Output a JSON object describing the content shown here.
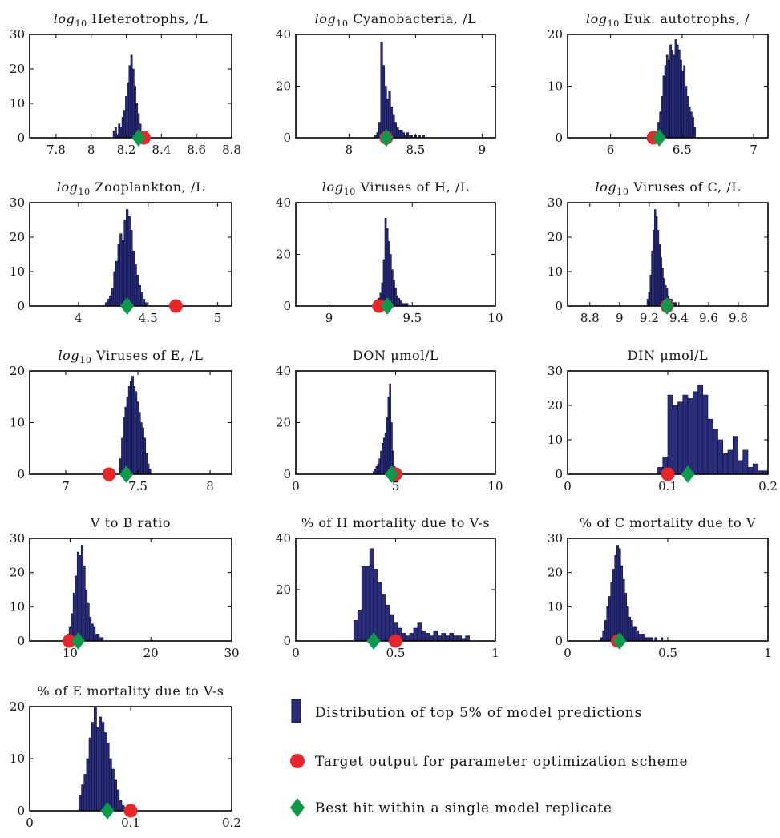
{
  "colors": {
    "bar": "#2a2e7a",
    "bar_edge": "#0b0d3a",
    "target": "#e8262a",
    "best": "#0a9a4a"
  },
  "legend": {
    "distribution_label": "Distribution of top 5% of model predictions",
    "target_label": "Target output for parameter optimization scheme",
    "best_label": "Best hit within a single model replicate"
  },
  "chart_data": [
    {
      "type": "bar",
      "title_prefix": "log",
      "title_sub": "10",
      "title": "Heterotrophs, /L",
      "xlim": [
        7.65,
        8.8
      ],
      "ylim": [
        0,
        30
      ],
      "xticks": [
        "7.8",
        "8",
        "8.2",
        "8.4",
        "8.6",
        "8.8"
      ],
      "yticks": [
        "0",
        "10",
        "20",
        "30"
      ],
      "bin_width": 0.01,
      "x": [
        8.13,
        8.14,
        8.15,
        8.16,
        8.17,
        8.18,
        8.19,
        8.2,
        8.21,
        8.22,
        8.23,
        8.24,
        8.25,
        8.26,
        8.27,
        8.28,
        8.29,
        8.3
      ],
      "values": [
        2,
        3,
        1,
        4,
        3,
        6,
        8,
        12,
        16,
        21,
        24,
        20,
        15,
        10,
        7,
        4,
        2,
        1
      ],
      "target": 8.3,
      "best": 8.27
    },
    {
      "type": "bar",
      "title_prefix": "log",
      "title_sub": "10",
      "title": "Cyanobacteria, /L",
      "xlim": [
        7.6,
        9.1
      ],
      "ylim": [
        0,
        40
      ],
      "xticks": [
        "8",
        "8.5",
        "9"
      ],
      "yticks": [
        "0",
        "20",
        "40"
      ],
      "bin_width": 0.015,
      "x": [
        8.2,
        8.215,
        8.23,
        8.245,
        8.26,
        8.275,
        8.29,
        8.305,
        8.32,
        8.335,
        8.35,
        8.365,
        8.38,
        8.395,
        8.41,
        8.425,
        8.44,
        8.455,
        8.47,
        8.485,
        8.5,
        8.515,
        8.53,
        8.545,
        8.56
      ],
      "values": [
        1,
        2,
        6,
        37,
        28,
        20,
        15,
        18,
        12,
        9,
        6,
        4,
        3,
        3,
        2,
        1,
        2,
        1,
        1,
        0,
        1,
        0,
        1,
        0,
        1
      ],
      "target": 8.28,
      "best": 8.28
    },
    {
      "type": "bar",
      "title_prefix": "log",
      "title_sub": "10",
      "title": "Euk. autotrophs, /",
      "xlim": [
        5.7,
        7.1
      ],
      "ylim": [
        0,
        20
      ],
      "xticks": [
        "6",
        "6.5",
        "7"
      ],
      "yticks": [
        "0",
        "10",
        "20"
      ],
      "bin_width": 0.012,
      "x": [
        6.336,
        6.348,
        6.36,
        6.372,
        6.384,
        6.396,
        6.408,
        6.42,
        6.432,
        6.444,
        6.456,
        6.468,
        6.48,
        6.492,
        6.504,
        6.516,
        6.528,
        6.54,
        6.552,
        6.564,
        6.576,
        6.588
      ],
      "values": [
        3,
        5,
        8,
        12,
        14,
        16,
        15,
        18,
        17,
        16,
        19,
        18,
        17,
        15,
        13,
        14,
        10,
        8,
        6,
        5,
        4,
        2
      ],
      "target": 6.3,
      "best": 6.34
    },
    {
      "type": "bar",
      "title_prefix": "log",
      "title_sub": "10",
      "title": "Zooplankton, /L",
      "xlim": [
        3.65,
        5.1
      ],
      "ylim": [
        0,
        30
      ],
      "xticks": [
        "4",
        "4.5",
        "5"
      ],
      "yticks": [
        "0",
        "10",
        "20",
        "30"
      ],
      "bin_width": 0.015,
      "x": [
        4.2,
        4.215,
        4.23,
        4.245,
        4.26,
        4.275,
        4.29,
        4.305,
        4.32,
        4.335,
        4.35,
        4.365,
        4.38,
        4.395,
        4.41,
        4.425,
        4.44,
        4.455,
        4.47,
        4.485
      ],
      "values": [
        1,
        2,
        3,
        5,
        10,
        13,
        18,
        21,
        19,
        25,
        28,
        26,
        22,
        16,
        12,
        9,
        6,
        4,
        2,
        1
      ],
      "target": 4.7,
      "best": 4.35
    },
    {
      "type": "bar",
      "title_prefix": "log",
      "title_sub": "10",
      "title": "Viruses of H, /L",
      "xlim": [
        8.8,
        10.0
      ],
      "ylim": [
        0,
        40
      ],
      "xticks": [
        "9",
        "9.5",
        "10"
      ],
      "yticks": [
        "0",
        "20",
        "40"
      ],
      "bin_width": 0.01,
      "x": [
        9.27,
        9.28,
        9.29,
        9.3,
        9.31,
        9.32,
        9.33,
        9.34,
        9.35,
        9.36,
        9.37,
        9.38,
        9.39,
        9.4,
        9.41,
        9.42,
        9.43,
        9.44,
        9.45,
        9.46,
        9.47
      ],
      "values": [
        1,
        1,
        2,
        3,
        5,
        9,
        18,
        34,
        30,
        25,
        20,
        14,
        10,
        7,
        4,
        3,
        2,
        1,
        1,
        1,
        1
      ],
      "target": 9.3,
      "best": 9.35
    },
    {
      "type": "bar",
      "title_prefix": "log",
      "title_sub": "10",
      "title": "Viruses of C, /L",
      "xlim": [
        8.65,
        10.0
      ],
      "ylim": [
        0,
        30
      ],
      "xticks": [
        "8.8",
        "9",
        "9.2",
        "9.4",
        "9.6",
        "9.8"
      ],
      "yticks": [
        "0",
        "10",
        "20",
        "30"
      ],
      "bin_width": 0.01,
      "x": [
        9.19,
        9.2,
        9.21,
        9.22,
        9.23,
        9.24,
        9.25,
        9.26,
        9.27,
        9.28,
        9.29,
        9.3,
        9.31,
        9.32,
        9.33,
        9.34,
        9.35,
        9.36,
        9.37,
        9.38
      ],
      "values": [
        2,
        4,
        9,
        16,
        22,
        28,
        26,
        22,
        18,
        14,
        11,
        8,
        6,
        5,
        3,
        2,
        2,
        1,
        1,
        1
      ],
      "target": 9.32,
      "best": 9.32
    },
    {
      "type": "bar",
      "title_prefix": "log",
      "title_sub": "10",
      "title": "Viruses of E, /L",
      "xlim": [
        6.75,
        8.15
      ],
      "ylim": [
        0,
        20
      ],
      "xticks": [
        "7",
        "7.5",
        "8"
      ],
      "yticks": [
        "0",
        "10",
        "20"
      ],
      "bin_width": 0.012,
      "x": [
        7.38,
        7.392,
        7.404,
        7.416,
        7.428,
        7.44,
        7.452,
        7.464,
        7.476,
        7.488,
        7.5,
        7.512,
        7.524,
        7.536,
        7.548,
        7.56,
        7.572,
        7.584
      ],
      "values": [
        3,
        7,
        11,
        13,
        15,
        17,
        18,
        19,
        17,
        16,
        14,
        12,
        10,
        9,
        7,
        4,
        2,
        1
      ],
      "target": 7.3,
      "best": 7.42
    },
    {
      "type": "bar",
      "title": "DON μmol/L",
      "xlim": [
        0,
        10
      ],
      "ylim": [
        0,
        40
      ],
      "xticks": [
        "0",
        "5",
        "10"
      ],
      "yticks": [
        "0",
        "20",
        "40"
      ],
      "bin_width": 0.075,
      "x": [
        3.9,
        3.975,
        4.05,
        4.125,
        4.2,
        4.275,
        4.35,
        4.425,
        4.5,
        4.575,
        4.65,
        4.725,
        4.8,
        4.875,
        4.95
      ],
      "values": [
        1,
        2,
        3,
        4,
        6,
        9,
        12,
        14,
        16,
        22,
        30,
        35,
        20,
        9,
        3
      ],
      "target": 5.0,
      "best": 4.8
    },
    {
      "type": "bar",
      "title": "DIN μmol/L",
      "xlim": [
        0,
        0.2
      ],
      "ylim": [
        0,
        30
      ],
      "xticks": [
        "0",
        "0.1",
        "0.2"
      ],
      "yticks": [
        "0",
        "10",
        "20",
        "30"
      ],
      "bin_width": 0.005,
      "x": [
        0.0925,
        0.0975,
        0.1025,
        0.1075,
        0.1125,
        0.1175,
        0.1225,
        0.1275,
        0.1325,
        0.1375,
        0.1425,
        0.1475,
        0.1525,
        0.1575,
        0.1625,
        0.1675,
        0.1725,
        0.1775,
        0.1825,
        0.1875,
        0.1925,
        0.1975
      ],
      "values": [
        2,
        5,
        23,
        20,
        21,
        23,
        22,
        24,
        26,
        23,
        16,
        13,
        10,
        6,
        7,
        11,
        4,
        7,
        2,
        3,
        1,
        1
      ],
      "target": 0.1,
      "best": 0.12
    },
    {
      "type": "bar",
      "title": "V to B ratio",
      "xlim": [
        5,
        30
      ],
      "ylim": [
        0,
        30
      ],
      "xticks": [
        "10",
        "20",
        "30"
      ],
      "yticks": [
        "0",
        "10",
        "20",
        "30"
      ],
      "bin_width": 0.25,
      "x": [
        9.5,
        9.75,
        10.0,
        10.25,
        10.5,
        10.75,
        11.0,
        11.25,
        11.5,
        11.75,
        12.0,
        12.25,
        12.5,
        12.75,
        13.0,
        13.25,
        13.5,
        13.75,
        14.0
      ],
      "values": [
        1,
        2,
        4,
        8,
        14,
        19,
        26,
        25,
        28,
        22,
        15,
        11,
        7,
        5,
        4,
        2,
        2,
        1,
        1
      ],
      "target": 9.9,
      "best": 11.0
    },
    {
      "type": "bar",
      "title": "% of H mortality due to V-s",
      "xlim": [
        0,
        1
      ],
      "ylim": [
        0,
        40
      ],
      "xticks": [
        "0",
        "0.5",
        "1"
      ],
      "yticks": [
        "0",
        "20",
        "40"
      ],
      "bin_width": 0.02,
      "x": [
        0.3,
        0.32,
        0.34,
        0.36,
        0.38,
        0.4,
        0.42,
        0.44,
        0.46,
        0.48,
        0.5,
        0.52,
        0.54,
        0.56,
        0.58,
        0.6,
        0.62,
        0.64,
        0.66,
        0.68,
        0.7,
        0.72,
        0.74,
        0.76,
        0.78,
        0.8,
        0.82,
        0.84,
        0.86
      ],
      "values": [
        8,
        12,
        29,
        29,
        36,
        28,
        23,
        18,
        14,
        10,
        7,
        5,
        3,
        2,
        3,
        5,
        7,
        4,
        3,
        2,
        4,
        2,
        3,
        2,
        3,
        2,
        2,
        1,
        2
      ],
      "target": 0.5,
      "best": 0.39
    },
    {
      "type": "bar",
      "title": "% of C mortality due to V",
      "xlim": [
        0,
        1
      ],
      "ylim": [
        0,
        30
      ],
      "xticks": [
        "0",
        "0.5",
        "1"
      ],
      "yticks": [
        "0",
        "10",
        "20",
        "30"
      ],
      "bin_width": 0.01,
      "x": [
        0.17,
        0.18,
        0.19,
        0.2,
        0.21,
        0.22,
        0.23,
        0.24,
        0.25,
        0.26,
        0.27,
        0.28,
        0.29,
        0.3,
        0.31,
        0.32,
        0.33,
        0.34,
        0.35,
        0.36,
        0.37,
        0.38,
        0.39,
        0.4,
        0.41,
        0.42,
        0.43,
        0.44,
        0.45,
        0.46,
        0.47
      ],
      "values": [
        1,
        3,
        6,
        10,
        13,
        17,
        21,
        25,
        28,
        27,
        22,
        18,
        14,
        10,
        7,
        6,
        4,
        4,
        3,
        2,
        2,
        2,
        1,
        1,
        1,
        1,
        0,
        1,
        0,
        0,
        1
      ],
      "target": 0.25,
      "best": 0.26
    },
    {
      "type": "bar",
      "title": "% of E mortality due to V-s",
      "xlim": [
        0,
        0.2
      ],
      "ylim": [
        0,
        20
      ],
      "xticks": [
        "0",
        "0.1",
        "0.2"
      ],
      "yticks": [
        "0",
        "10",
        "20"
      ],
      "bin_width": 0.0025,
      "x": [
        0.05,
        0.0525,
        0.055,
        0.0575,
        0.06,
        0.0625,
        0.065,
        0.0675,
        0.07,
        0.0725,
        0.075,
        0.0775,
        0.08,
        0.0825,
        0.085,
        0.0875,
        0.09,
        0.0925
      ],
      "values": [
        3,
        5,
        7,
        10,
        14,
        17,
        20,
        16,
        18,
        17,
        15,
        13,
        10,
        8,
        6,
        4,
        2,
        1
      ],
      "target": 0.1,
      "best": 0.077
    }
  ]
}
